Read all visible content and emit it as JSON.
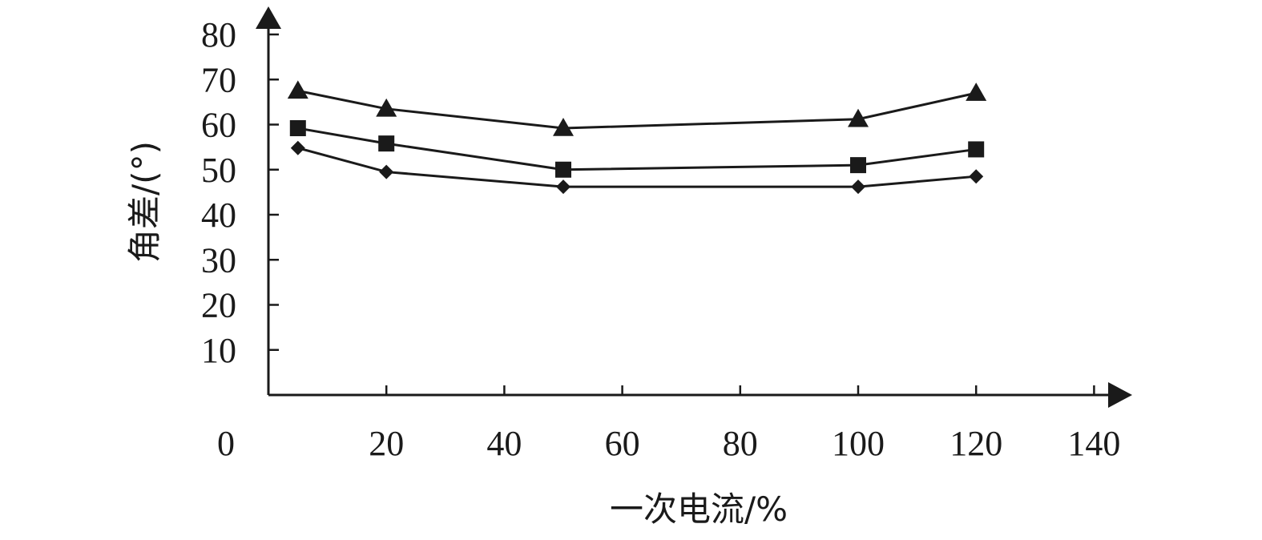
{
  "chart_data": {
    "type": "line",
    "title": "",
    "xlabel": "一次电流/%",
    "ylabel": "角差/(°)",
    "xlim": [
      0,
      140
    ],
    "ylim": [
      0,
      80
    ],
    "x_ticks": [
      0,
      20,
      40,
      60,
      80,
      100,
      120,
      140
    ],
    "y_ticks": [
      10,
      20,
      30,
      40,
      50,
      60,
      70,
      80
    ],
    "grid": false,
    "legend": "none",
    "x": [
      5,
      20,
      50,
      100,
      120
    ],
    "series": [
      {
        "marker": "triangle",
        "values": [
          67.5,
          63.5,
          59.2,
          61.2,
          67.0
        ],
        "color": "#1a1a1a"
      },
      {
        "marker": "square",
        "values": [
          59.2,
          55.8,
          50.0,
          51.0,
          54.5
        ],
        "color": "#1a1a1a"
      },
      {
        "marker": "diamond",
        "values": [
          54.8,
          49.5,
          46.2,
          46.2,
          48.5
        ],
        "color": "#1a1a1a"
      }
    ]
  }
}
